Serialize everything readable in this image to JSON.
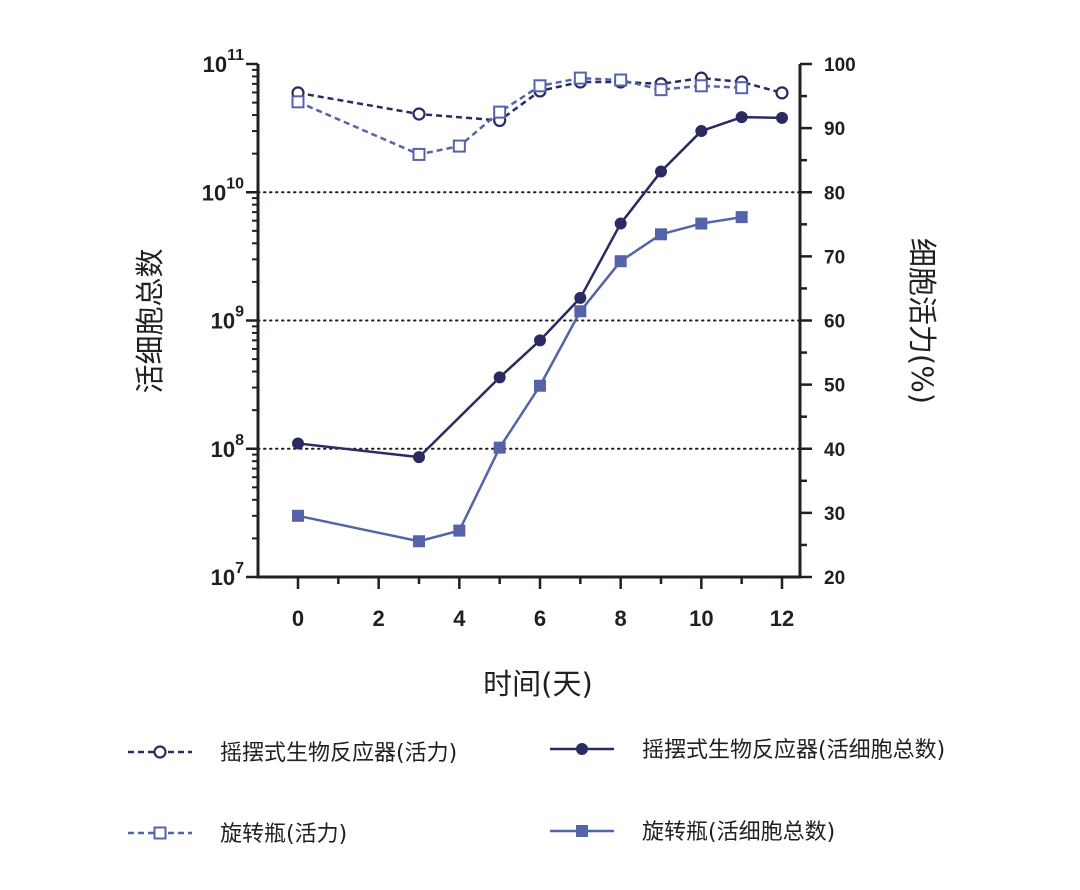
{
  "chart_data": {
    "type": "line",
    "xlabel": "时间(天)",
    "ylabel_left": "活细胞总数",
    "ylabel_right": "细胞活力(%)",
    "x_ticks": [
      0,
      2,
      4,
      6,
      8,
      10,
      12
    ],
    "x_range": [
      0,
      12
    ],
    "y_left_scale": "log",
    "y_left_range": [
      10000000,
      100000000000
    ],
    "y_left_ticks": [
      {
        "base": "10",
        "exp": "7"
      },
      {
        "base": "10",
        "exp": "8"
      },
      {
        "base": "10",
        "exp": "9"
      },
      {
        "base": "10",
        "exp": "10"
      },
      {
        "base": "10",
        "exp": "11"
      }
    ],
    "y_right_range": [
      20,
      100
    ],
    "y_right_ticks": [
      20,
      30,
      40,
      50,
      60,
      70,
      80,
      90,
      100
    ],
    "grid": "dotted horizontal lines at 10^8, 10^9, 10^10",
    "legend_position": "bottom",
    "colors": {
      "dark": "#2b2a63",
      "light": "#5563a8",
      "axis": "#231f20"
    },
    "series": [
      {
        "name": "摇摆式生物反应器(活力)",
        "axis": "right",
        "style": "dashed",
        "marker": "open-circle",
        "color": "#2b2a63",
        "x": [
          0,
          3,
          5,
          6,
          7,
          8,
          9,
          10,
          11,
          12
        ],
        "y": [
          95.5,
          92.2,
          91.2,
          95.8,
          97.2,
          97.2,
          96.9,
          97.8,
          97.2,
          95.5
        ]
      },
      {
        "name": "旋转瓶(活力)",
        "axis": "right",
        "style": "dashed",
        "marker": "open-square",
        "color": "#5563a8",
        "x": [
          0,
          3,
          4,
          5,
          6,
          7,
          8,
          9,
          10,
          11
        ],
        "y": [
          94.1,
          85.9,
          87.2,
          92.5,
          96.6,
          97.8,
          97.5,
          96.0,
          96.6,
          96.3
        ]
      },
      {
        "name": "摇摆式生物反应器(活细胞总数)",
        "axis": "left",
        "style": "solid",
        "marker": "filled-circle",
        "color": "#2b2a63",
        "x": [
          0,
          3,
          5,
          6,
          7,
          8,
          9,
          10,
          11,
          12
        ],
        "y": [
          110000000,
          86000000,
          360000000,
          700000000,
          1500000000,
          5700000000,
          14500000000,
          30000000000,
          38500000000,
          38000000000
        ]
      },
      {
        "name": "旋转瓶(活细胞总数)",
        "axis": "left",
        "style": "solid",
        "marker": "filled-square",
        "color": "#5563a8",
        "x": [
          0,
          3,
          4,
          5,
          6,
          7,
          8,
          9,
          10,
          11
        ],
        "y": [
          30000000,
          19000000,
          23000000,
          102000000,
          310000000,
          1180000000,
          2900000000,
          4700000000,
          5700000000,
          6400000000
        ]
      }
    ]
  }
}
